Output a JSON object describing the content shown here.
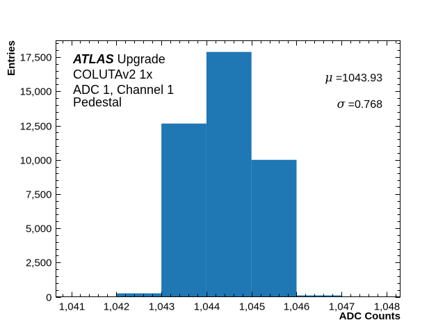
{
  "chart_data": {
    "type": "bar",
    "subtype": "histogram",
    "title": "",
    "xlabel": "ADC Counts",
    "ylabel": "Entries",
    "xlim": [
      1040.66,
      1048.3
    ],
    "ylim": [
      0,
      18700
    ],
    "grid": false,
    "legend": null,
    "bar_color": "#1f77b4",
    "bins": [
      {
        "left": 1042,
        "right": 1043,
        "value": 250
      },
      {
        "left": 1043,
        "right": 1044,
        "value": 12650
      },
      {
        "left": 1044,
        "right": 1045,
        "value": 17880
      },
      {
        "left": 1045,
        "right": 1046,
        "value": 10000
      },
      {
        "left": 1046,
        "right": 1047,
        "value": 100
      }
    ],
    "categories": [
      "1,042",
      "1,043",
      "1,044",
      "1,045",
      "1,046"
    ],
    "values": [
      250,
      12650,
      17880,
      10000,
      100
    ],
    "x_ticks": [
      {
        "value": 1041,
        "label": "1,041"
      },
      {
        "value": 1042,
        "label": "1,042"
      },
      {
        "value": 1043,
        "label": "1,043"
      },
      {
        "value": 1044,
        "label": "1,044"
      },
      {
        "value": 1045,
        "label": "1,045"
      },
      {
        "value": 1046,
        "label": "1,046"
      },
      {
        "value": 1047,
        "label": "1,047"
      },
      {
        "value": 1048,
        "label": "1,048"
      }
    ],
    "y_ticks": [
      {
        "value": 0,
        "label": "0"
      },
      {
        "value": 2500,
        "label": "2,500"
      },
      {
        "value": 5000,
        "label": "5,000"
      },
      {
        "value": 7500,
        "label": "7,500"
      },
      {
        "value": 10000,
        "label": "10,000"
      },
      {
        "value": 12500,
        "label": "12,500"
      },
      {
        "value": 15000,
        "label": "15,000"
      },
      {
        "value": 17500,
        "label": "17,500"
      }
    ],
    "annotations": {
      "atlas_label": "ATLAS",
      "atlas_suffix": " Upgrade",
      "lines": [
        "COLUTAv2 1x",
        "ADC 1, Channel 1",
        "Pedestal"
      ],
      "mu_symbol": "μ",
      "mu_text": " =1043.93",
      "sigma_symbol": "σ",
      "sigma_text": " =0.768"
    }
  }
}
